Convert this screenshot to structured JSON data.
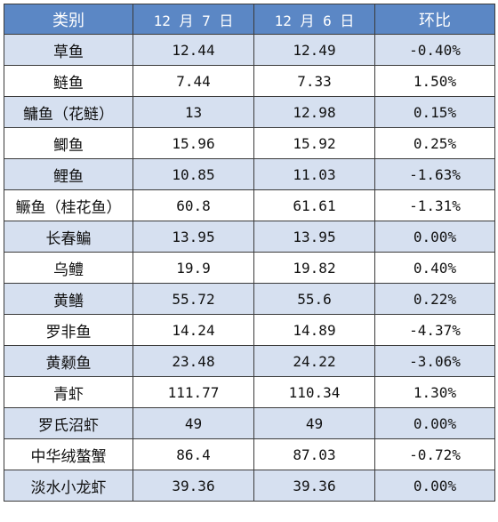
{
  "table": {
    "headers": [
      "类别",
      "12 月 7 日",
      "12 月 6 日",
      "环比"
    ],
    "rows": [
      {
        "name": "草鱼",
        "dec7": "12.44",
        "dec6": "12.49",
        "change": "-0.40%"
      },
      {
        "name": "鲢鱼",
        "dec7": "7.44",
        "dec6": "7.33",
        "change": "1.50%"
      },
      {
        "name": "鳙鱼（花鲢）",
        "dec7": "13",
        "dec6": "12.98",
        "change": "0.15%"
      },
      {
        "name": "鲫鱼",
        "dec7": "15.96",
        "dec6": "15.92",
        "change": "0.25%"
      },
      {
        "name": "鲤鱼",
        "dec7": "10.85",
        "dec6": "11.03",
        "change": "-1.63%"
      },
      {
        "name": "鳜鱼（桂花鱼）",
        "dec7": "60.8",
        "dec6": "61.61",
        "change": "-1.31%"
      },
      {
        "name": "长春鳊",
        "dec7": "13.95",
        "dec6": "13.95",
        "change": "0.00%"
      },
      {
        "name": "乌鳢",
        "dec7": "19.9",
        "dec6": "19.82",
        "change": "0.40%"
      },
      {
        "name": "黄鳝",
        "dec7": "55.72",
        "dec6": "55.6",
        "change": "0.22%"
      },
      {
        "name": "罗非鱼",
        "dec7": "14.24",
        "dec6": "14.89",
        "change": "-4.37%"
      },
      {
        "name": "黄颡鱼",
        "dec7": "23.48",
        "dec6": "24.22",
        "change": "-3.06%"
      },
      {
        "name": "青虾",
        "dec7": "111.77",
        "dec6": "110.34",
        "change": "1.30%"
      },
      {
        "name": "罗氏沼虾",
        "dec7": "49",
        "dec6": "49",
        "change": "0.00%"
      },
      {
        "name": "中华绒螯蟹",
        "dec7": "86.4",
        "dec6": "87.03",
        "change": "-0.72%"
      },
      {
        "name": "淡水小龙虾",
        "dec7": "39.36",
        "dec6": "39.36",
        "change": "0.00%"
      }
    ]
  },
  "colors": {
    "header_bg": "#5b87c5",
    "odd_row_bg": "#d6e0f0",
    "even_row_bg": "#ffffff",
    "border": "#3a3a3a"
  }
}
